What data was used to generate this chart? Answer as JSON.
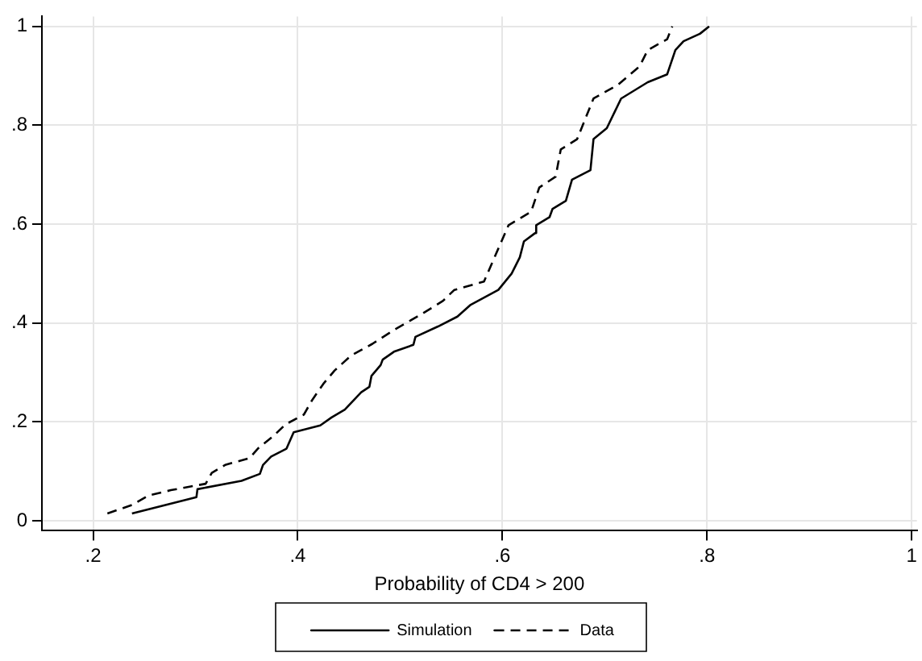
{
  "chart_data": {
    "type": "line",
    "xlabel": "Probability of CD4 > 200",
    "xlim": [
      0.15,
      1.005
    ],
    "ylim": [
      -0.02,
      1.02
    ],
    "xticks": [
      {
        "value": 0.2,
        "label": ".2"
      },
      {
        "value": 0.4,
        "label": ".4"
      },
      {
        "value": 0.6,
        "label": ".6"
      },
      {
        "value": 0.8,
        "label": ".8"
      },
      {
        "value": 1,
        "label": "1"
      }
    ],
    "yticks": [
      {
        "value": 0,
        "label": "0"
      },
      {
        "value": 0.2,
        "label": ".2"
      },
      {
        "value": 0.4,
        "label": ".4"
      },
      {
        "value": 0.6,
        "label": ".6"
      },
      {
        "value": 0.8,
        "label": ".8"
      },
      {
        "value": 1,
        "label": "1"
      }
    ],
    "grid": true,
    "legend": "bottom",
    "marker": "none",
    "series": [
      {
        "name": "Simulation",
        "color": "#000000",
        "line_style": "solid",
        "x": [
          0.238,
          0.301,
          0.302,
          0.345,
          0.363,
          0.366,
          0.374,
          0.389,
          0.396,
          0.422,
          0.433,
          0.446,
          0.462,
          0.47,
          0.472,
          0.481,
          0.483,
          0.494,
          0.513,
          0.515,
          0.537,
          0.556,
          0.569,
          0.596,
          0.609,
          0.617,
          0.621,
          0.632,
          0.633,
          0.646,
          0.649,
          0.662,
          0.668,
          0.686,
          0.689,
          0.702,
          0.716,
          0.742,
          0.761,
          0.769,
          0.777,
          0.793,
          0.802
        ],
        "values": [
          0.015,
          0.048,
          0.064,
          0.081,
          0.095,
          0.113,
          0.13,
          0.146,
          0.179,
          0.193,
          0.209,
          0.225,
          0.26,
          0.271,
          0.293,
          0.315,
          0.326,
          0.342,
          0.356,
          0.372,
          0.393,
          0.413,
          0.437,
          0.467,
          0.5,
          0.533,
          0.565,
          0.582,
          0.598,
          0.614,
          0.631,
          0.647,
          0.69,
          0.709,
          0.772,
          0.794,
          0.854,
          0.887,
          0.903,
          0.952,
          0.97,
          0.985,
          1.0
        ]
      },
      {
        "name": "Data",
        "color": "#000000",
        "line_style": "dashed",
        "x": [
          0.214,
          0.238,
          0.254,
          0.276,
          0.31,
          0.316,
          0.329,
          0.353,
          0.361,
          0.377,
          0.388,
          0.406,
          0.414,
          0.425,
          0.436,
          0.452,
          0.473,
          0.494,
          0.521,
          0.542,
          0.553,
          0.582,
          0.59,
          0.606,
          0.628,
          0.636,
          0.652,
          0.657,
          0.673,
          0.689,
          0.713,
          0.734,
          0.742,
          0.761,
          0.766
        ],
        "values": [
          0.015,
          0.032,
          0.051,
          0.062,
          0.075,
          0.097,
          0.113,
          0.127,
          0.146,
          0.173,
          0.195,
          0.215,
          0.244,
          0.277,
          0.304,
          0.334,
          0.358,
          0.386,
          0.418,
          0.445,
          0.467,
          0.484,
          0.522,
          0.598,
          0.625,
          0.674,
          0.696,
          0.751,
          0.772,
          0.854,
          0.882,
          0.919,
          0.952,
          0.974,
          1.0
        ]
      }
    ]
  }
}
